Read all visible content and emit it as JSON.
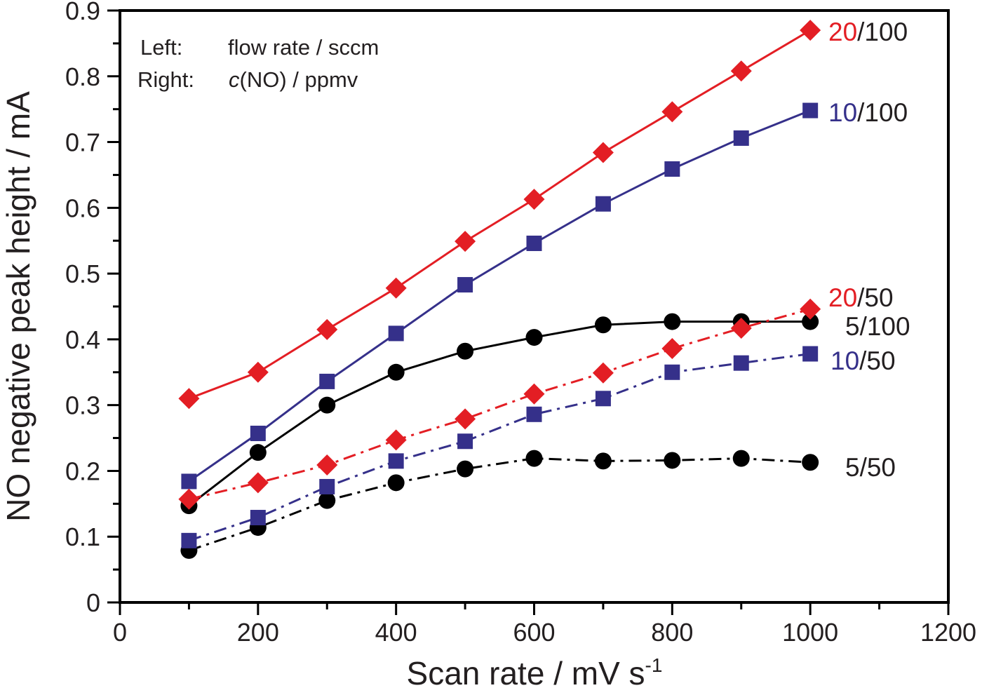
{
  "chart_data": {
    "type": "line",
    "title": "",
    "xlabel": "Scan rate / mV s",
    "xlabel_superscript": "-1",
    "ylabel": "NO negative peak height / mA",
    "xlim": [
      0,
      1200
    ],
    "ylim": [
      0,
      0.9
    ],
    "xticks": [
      0,
      200,
      400,
      600,
      800,
      1000,
      1200
    ],
    "xtick_labels": [
      "0",
      "200",
      "400",
      "600",
      "800",
      "1000",
      "1200"
    ],
    "x_minor_step": 100,
    "yticks": [
      0,
      0.1,
      0.2,
      0.3,
      0.4,
      0.5,
      0.6,
      0.7,
      0.8,
      0.9
    ],
    "ytick_labels": [
      "0",
      "0.1",
      "0.2",
      "0.3",
      "0.4",
      "0.5",
      "0.6",
      "0.7",
      "0.8",
      "0.9"
    ],
    "y_minor_step": 0.05,
    "grid": false,
    "annotation": {
      "line1_key": "Left:",
      "line1_value": "flow rate / sccm",
      "line2_key": "Right:",
      "line2_value_italic": "c",
      "line2_value": "(NO) / ppmv",
      "placement": "top-left"
    },
    "x": [
      100,
      200,
      300,
      400,
      500,
      600,
      700,
      800,
      900,
      1000
    ],
    "series": [
      {
        "name": "5/100",
        "label_left": "5",
        "label_right": "/100",
        "color": "#000000",
        "label_color": "#231f20",
        "marker": "circle",
        "linestyle": "solid",
        "values": [
          0.147,
          0.228,
          0.3,
          0.35,
          0.382,
          0.403,
          0.422,
          0.427,
          0.427,
          0.427
        ]
      },
      {
        "name": "5/50",
        "label_left": "5",
        "label_right": "/50",
        "color": "#000000",
        "label_color": "#231f20",
        "marker": "circle",
        "linestyle": "dashdot",
        "values": [
          0.079,
          0.114,
          0.155,
          0.182,
          0.203,
          0.219,
          0.215,
          0.216,
          0.219,
          0.213
        ]
      },
      {
        "name": "10/100",
        "label_left": "10",
        "label_right": "/100",
        "color": "#35308a",
        "label_color": "#35308a",
        "marker": "square",
        "linestyle": "solid",
        "values": [
          0.184,
          0.257,
          0.336,
          0.409,
          0.483,
          0.546,
          0.606,
          0.659,
          0.706,
          0.748
        ]
      },
      {
        "name": "10/50",
        "label_left": "10",
        "label_right": "/50",
        "color": "#35308a",
        "label_color": "#35308a",
        "marker": "square",
        "linestyle": "dashdot",
        "values": [
          0.094,
          0.129,
          0.176,
          0.215,
          0.245,
          0.286,
          0.31,
          0.35,
          0.364,
          0.378
        ]
      },
      {
        "name": "20/100",
        "label_left": "20",
        "label_right": "/100",
        "color": "#e31e24",
        "label_color": "#e31e24",
        "marker": "diamond",
        "linestyle": "solid",
        "values": [
          0.31,
          0.35,
          0.415,
          0.478,
          0.549,
          0.613,
          0.684,
          0.746,
          0.808,
          0.87
        ]
      },
      {
        "name": "20/50",
        "label_left": "20",
        "label_right": "/50",
        "color": "#e31e24",
        "label_color": "#e31e24",
        "marker": "diamond",
        "linestyle": "dashdot",
        "values": [
          0.157,
          0.182,
          0.209,
          0.247,
          0.279,
          0.317,
          0.349,
          0.386,
          0.417,
          0.446
        ]
      }
    ]
  }
}
